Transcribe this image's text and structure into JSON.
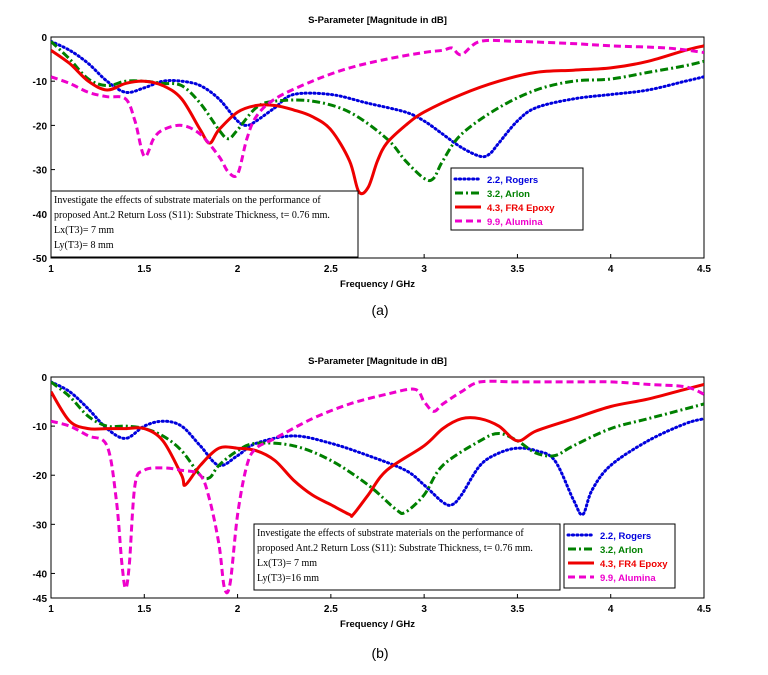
{
  "chart_data": [
    {
      "type": "line",
      "caption": "(a)",
      "title": "S-Parameter [Magnitude in dB]",
      "xlabel": "Frequency / GHz",
      "ylabel": "",
      "xlim": [
        1,
        4.5
      ],
      "ylim": [
        -50,
        0
      ],
      "xticks": [
        1,
        1.5,
        2,
        2.5,
        3,
        3.5,
        4,
        4.5
      ],
      "yticks": [
        0,
        -10,
        -20,
        -30,
        -40,
        -50
      ],
      "legend_position": "right",
      "annotation": [
        "Investigate the effects of substrate materials on the performance of",
        "proposed Ant.2 Return Loss (S11): Substrate Thickness, t= 0.76 mm.",
        "Lx(T3)= 7 mm",
        "Ly(T3)= 8 mm"
      ],
      "series": [
        {
          "name": "2.2, Rogers",
          "color": "#0000dd",
          "dash": "dotted",
          "x": [
            1.0,
            1.1,
            1.2,
            1.3,
            1.4,
            1.5,
            1.6,
            1.7,
            1.8,
            1.9,
            2.0,
            2.05,
            2.1,
            2.2,
            2.3,
            2.5,
            2.7,
            2.9,
            3.0,
            3.1,
            3.2,
            3.3,
            3.35,
            3.4,
            3.5,
            3.6,
            3.8,
            4.0,
            4.2,
            4.4,
            4.5
          ],
          "y": [
            -1,
            -3,
            -6,
            -10,
            -12.5,
            -11.5,
            -10,
            -10,
            -11,
            -14,
            -19,
            -20,
            -19,
            -16,
            -13,
            -13,
            -15,
            -17,
            -19,
            -22,
            -25,
            -27,
            -26.5,
            -24,
            -19,
            -16,
            -14,
            -13,
            -12,
            -10,
            -9
          ]
        },
        {
          "name": "3.2, Arlon",
          "color": "#008000",
          "dash": "dashdot",
          "x": [
            1.0,
            1.1,
            1.2,
            1.3,
            1.4,
            1.5,
            1.6,
            1.7,
            1.8,
            1.9,
            1.95,
            2.0,
            2.1,
            2.2,
            2.4,
            2.6,
            2.8,
            2.9,
            3.0,
            3.05,
            3.1,
            3.2,
            3.4,
            3.6,
            3.8,
            4.0,
            4.2,
            4.4,
            4.5
          ],
          "y": [
            -1,
            -5,
            -9.5,
            -11,
            -10,
            -10,
            -10.5,
            -11,
            -15,
            -21,
            -23,
            -21,
            -16,
            -14.5,
            -14.5,
            -17,
            -23,
            -28,
            -32,
            -32,
            -28,
            -22,
            -16,
            -12,
            -10,
            -9.5,
            -8,
            -6.5,
            -5.5
          ]
        },
        {
          "name": "4.3, FR4 Epoxy",
          "color": "#ee0000",
          "dash": "solid",
          "x": [
            1.0,
            1.1,
            1.2,
            1.3,
            1.4,
            1.5,
            1.6,
            1.7,
            1.8,
            1.85,
            1.9,
            2.0,
            2.1,
            2.2,
            2.3,
            2.4,
            2.5,
            2.6,
            2.65,
            2.7,
            2.75,
            2.8,
            2.9,
            3.0,
            3.2,
            3.4,
            3.6,
            3.8,
            4.0,
            4.2,
            4.4,
            4.5
          ],
          "y": [
            -3,
            -6,
            -10,
            -12,
            -10.5,
            -10,
            -11,
            -14,
            -21,
            -24,
            -21,
            -17,
            -15.5,
            -15.5,
            -16.5,
            -18,
            -21,
            -28,
            -35,
            -34,
            -28,
            -24,
            -20,
            -17,
            -13,
            -10,
            -8,
            -7.5,
            -7,
            -5.5,
            -3,
            -2
          ]
        },
        {
          "name": "9.9, Alumina",
          "color": "#ee00cc",
          "dash": "dashed",
          "x": [
            1.0,
            1.1,
            1.2,
            1.3,
            1.4,
            1.45,
            1.5,
            1.55,
            1.6,
            1.7,
            1.8,
            1.9,
            1.95,
            2.0,
            2.05,
            2.1,
            2.2,
            2.4,
            2.6,
            2.8,
            3.0,
            3.1,
            3.15,
            3.2,
            3.3,
            3.5,
            3.8,
            4.0,
            4.3,
            4.5
          ],
          "y": [
            -9,
            -10.5,
            -12.5,
            -13.5,
            -14,
            -19,
            -27,
            -23,
            -21,
            -20,
            -22,
            -27,
            -30.5,
            -31,
            -23,
            -18,
            -14,
            -10,
            -7,
            -5,
            -3.5,
            -3,
            -2.5,
            -4,
            -1,
            -1,
            -1.5,
            -2,
            -2.5,
            -3.5
          ]
        }
      ]
    },
    {
      "type": "line",
      "caption": "(b)",
      "title": "S-Parameter [Magnitude in dB]",
      "xlabel": "Frequency / GHz",
      "ylabel": "",
      "xlim": [
        1,
        4.5
      ],
      "ylim": [
        -45,
        0
      ],
      "xticks": [
        1,
        1.5,
        2,
        2.5,
        3,
        3.5,
        4,
        4.5
      ],
      "yticks": [
        0,
        -10,
        -20,
        -30,
        -40,
        -45
      ],
      "legend_position": "right",
      "annotation": [
        "Investigate the effects of substrate materials on the performance of",
        "proposed Ant.2 Return Loss (S11): Substrate Thickness, t= 0.76 mm.",
        "Lx(T3)= 7 mm",
        "Ly(T3)=16 mm"
      ],
      "series": [
        {
          "name": "2.2, Rogers",
          "color": "#0000dd",
          "dash": "dotted",
          "x": [
            1.0,
            1.1,
            1.2,
            1.3,
            1.4,
            1.5,
            1.6,
            1.7,
            1.8,
            1.9,
            2.0,
            2.1,
            2.3,
            2.5,
            2.7,
            2.9,
            3.0,
            3.1,
            3.15,
            3.2,
            3.3,
            3.4,
            3.5,
            3.6,
            3.7,
            3.8,
            3.85,
            3.9,
            4.0,
            4.2,
            4.4,
            4.5
          ],
          "y": [
            -1,
            -3,
            -6.5,
            -10.5,
            -12.5,
            -10,
            -9,
            -10,
            -14,
            -18,
            -16,
            -13.5,
            -12,
            -13.5,
            -16,
            -19,
            -22,
            -25.5,
            -26,
            -24,
            -18,
            -15.5,
            -14.5,
            -15,
            -17,
            -25,
            -28,
            -23,
            -18,
            -13,
            -9.5,
            -8.5
          ]
        },
        {
          "name": "3.2, Arlon",
          "color": "#008000",
          "dash": "dashdot",
          "x": [
            1.0,
            1.1,
            1.2,
            1.3,
            1.4,
            1.5,
            1.6,
            1.7,
            1.8,
            1.85,
            1.9,
            2.0,
            2.1,
            2.3,
            2.5,
            2.7,
            2.85,
            2.9,
            3.0,
            3.1,
            3.3,
            3.4,
            3.5,
            3.6,
            3.7,
            3.8,
            4.0,
            4.2,
            4.4,
            4.5
          ],
          "y": [
            -1,
            -4,
            -8,
            -10,
            -10,
            -10.5,
            -12,
            -15,
            -20,
            -20.5,
            -18,
            -15,
            -13.5,
            -14,
            -17,
            -22,
            -27,
            -27.5,
            -24,
            -18,
            -13,
            -11.5,
            -13,
            -15.5,
            -16,
            -14,
            -10.5,
            -8.5,
            -6.5,
            -5.5
          ]
        },
        {
          "name": "4.3, FR4 Epoxy",
          "color": "#ee0000",
          "dash": "solid",
          "x": [
            1.0,
            1.1,
            1.2,
            1.3,
            1.4,
            1.5,
            1.6,
            1.7,
            1.72,
            1.8,
            1.9,
            2.0,
            2.1,
            2.2,
            2.3,
            2.4,
            2.5,
            2.6,
            2.62,
            2.7,
            2.8,
            3.0,
            3.1,
            3.2,
            3.3,
            3.4,
            3.5,
            3.6,
            3.8,
            4.0,
            4.2,
            4.4,
            4.5
          ],
          "y": [
            -3,
            -9,
            -10.5,
            -10.5,
            -10.5,
            -10.5,
            -13,
            -20,
            -22,
            -18,
            -14.5,
            -14.5,
            -15,
            -17,
            -21,
            -24,
            -26,
            -28,
            -28,
            -24,
            -19,
            -14,
            -10.5,
            -8.5,
            -8.5,
            -10,
            -13,
            -11,
            -8.5,
            -6,
            -4.5,
            -2.5,
            -1.5
          ]
        },
        {
          "name": "9.9, Alumina",
          "color": "#ee00cc",
          "dash": "dashed",
          "x": [
            1.0,
            1.1,
            1.2,
            1.3,
            1.35,
            1.38,
            1.4,
            1.42,
            1.45,
            1.5,
            1.6,
            1.7,
            1.8,
            1.85,
            1.9,
            1.93,
            1.96,
            2.0,
            2.05,
            2.1,
            2.2,
            2.4,
            2.6,
            2.8,
            2.95,
            3.0,
            3.05,
            3.1,
            3.2,
            3.3,
            3.5,
            3.8,
            4.0,
            4.2,
            4.4,
            4.5
          ],
          "y": [
            -9,
            -10,
            -12,
            -14,
            -25,
            -38,
            -43,
            -38,
            -22,
            -19,
            -18.5,
            -19,
            -20,
            -25,
            -34,
            -43,
            -42,
            -28,
            -18,
            -14.5,
            -12.5,
            -8.5,
            -5.5,
            -3.5,
            -2.5,
            -5,
            -7,
            -5.5,
            -3,
            -1,
            -1,
            -1,
            -1,
            -1.5,
            -2,
            -3.5
          ]
        }
      ]
    }
  ]
}
